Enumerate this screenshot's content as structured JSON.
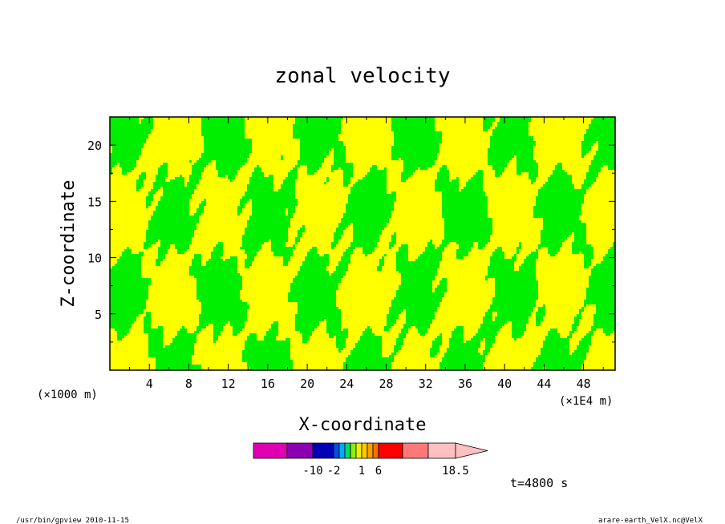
{
  "chart_data": {
    "type": "heatmap",
    "title": "zonal velocity",
    "xlabel": "X-coordinate",
    "ylabel": "Z-coordinate",
    "x_unit_left": "(×1000 m)",
    "x_unit_right": "(×1E4 m)",
    "x_ticks": [
      "4",
      "8",
      "12",
      "16",
      "20",
      "24",
      "28",
      "32",
      "36",
      "40",
      "44",
      "48"
    ],
    "y_ticks": [
      "5",
      "10",
      "15",
      "20"
    ],
    "xlim": [
      0,
      51.2
    ],
    "ylim": [
      0,
      22.5
    ],
    "time_label": "t=4800 s",
    "colorbar": {
      "tick_labels": [
        "-10",
        "-2",
        "1",
        "6",
        "18.5"
      ],
      "colors": [
        "#e000b4",
        "#8c00b4",
        "#0000b4",
        "#0050e0",
        "#00aaff",
        "#00dc64",
        "#8cf000",
        "#f0f000",
        "#ffc800",
        "#ffa000",
        "#ff6e00",
        "#ff0000",
        "#ff7878",
        "#ffc0c0"
      ]
    },
    "field_colors": {
      "low": "#00ee00",
      "high": "#ffff00"
    }
  },
  "footer": {
    "left": "/usr/bin/gpview  2010-11-15",
    "right": "arare-earth_VelX.nc@VelX"
  }
}
